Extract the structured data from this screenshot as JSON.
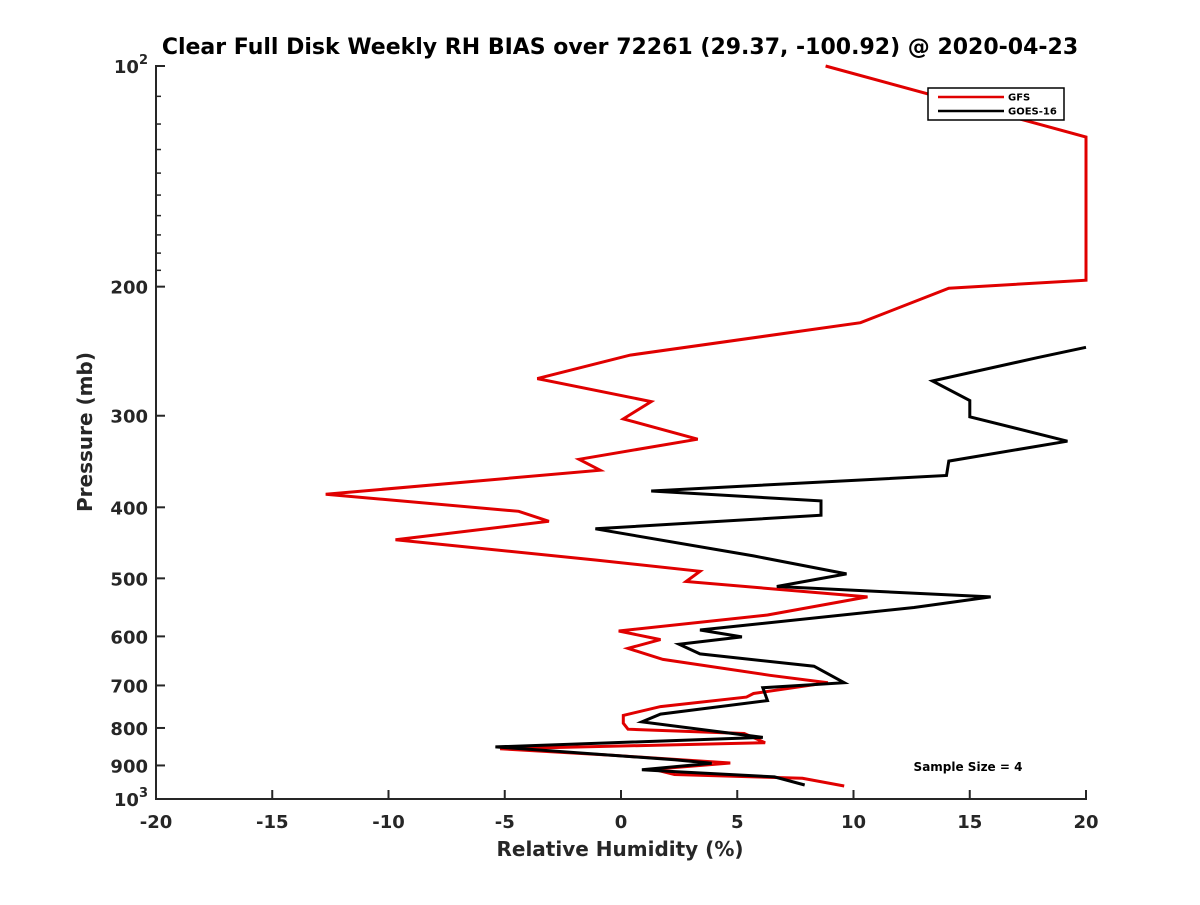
{
  "chart_data": {
    "type": "line",
    "title": "Clear Full Disk Weekly RH BIAS over 72261 (29.37, -100.92) @ 2020-04-23",
    "xlabel": "Relative Humidity (%)",
    "ylabel": "Pressure (mb)",
    "xlim": [
      -20,
      20
    ],
    "ylim": [
      100,
      1000
    ],
    "yscale": "log",
    "y_reversed": true,
    "grid": false,
    "legend_position": "top-right",
    "x_ticks": [
      "-20",
      "-15",
      "-10",
      "-5",
      "0",
      "5",
      "10",
      "15",
      "20"
    ],
    "y_ticks": [
      {
        "base": "10",
        "exp": "2",
        "value": 100
      },
      {
        "label": "200",
        "value": 200
      },
      {
        "label": "300",
        "value": 300
      },
      {
        "label": "400",
        "value": 400
      },
      {
        "label": "500",
        "value": 500
      },
      {
        "label": "600",
        "value": 600
      },
      {
        "label": "700",
        "value": 700
      },
      {
        "label": "800",
        "value": 800
      },
      {
        "label": "900",
        "value": 900
      },
      {
        "base": "10",
        "exp": "3",
        "value": 1000
      }
    ],
    "annotation": "Sample Size = 4",
    "series": [
      {
        "name": "GFS",
        "color": "#e00000",
        "points": [
          [
            8.8,
            100
          ],
          [
            20,
            125
          ],
          [
            20,
            196
          ],
          [
            14.1,
            201
          ],
          [
            10.3,
            224
          ],
          [
            0.4,
            248
          ],
          [
            -3.6,
            267
          ],
          [
            1.3,
            287
          ],
          [
            0.1,
            303
          ],
          [
            3.3,
            323
          ],
          [
            -1.8,
            344
          ],
          [
            -0.9,
            356
          ],
          [
            -12.7,
            384
          ],
          [
            -4.4,
            405
          ],
          [
            -3.1,
            418
          ],
          [
            -9.7,
            443
          ],
          [
            -1.1,
            472
          ],
          [
            3.4,
            489
          ],
          [
            2.8,
            505
          ],
          [
            10.6,
            530
          ],
          [
            6.3,
            561
          ],
          [
            -0.1,
            590
          ],
          [
            1.7,
            606
          ],
          [
            0.3,
            623
          ],
          [
            1.8,
            645
          ],
          [
            6.4,
            678
          ],
          [
            8.9,
            694
          ],
          [
            5.7,
            718
          ],
          [
            5.4,
            726
          ],
          [
            1.7,
            748
          ],
          [
            0.1,
            769
          ],
          [
            0.1,
            788
          ],
          [
            0.3,
            803
          ],
          [
            5.3,
            814
          ],
          [
            6.2,
            838
          ],
          [
            -5.2,
            854
          ],
          [
            -0.3,
            872
          ],
          [
            4.7,
            893
          ],
          [
            1.4,
            911
          ],
          [
            2.3,
            926
          ],
          [
            7.8,
            937
          ],
          [
            9.6,
            960
          ]
        ]
      },
      {
        "name": "GOES-16",
        "color": "#000000",
        "points": [
          [
            20,
            242
          ],
          [
            17.9,
            250
          ],
          [
            13.4,
            269
          ],
          [
            15,
            286
          ],
          [
            15,
            301
          ],
          [
            19.2,
            325
          ],
          [
            14.1,
            346
          ],
          [
            14,
            362
          ],
          [
            1.3,
            380
          ],
          [
            8.6,
            392
          ],
          [
            8.6,
            410
          ],
          [
            -1.1,
            428
          ],
          [
            5.7,
            466
          ],
          [
            9.7,
            493
          ],
          [
            6.7,
            513
          ],
          [
            15.9,
            530
          ],
          [
            12.6,
            548
          ],
          [
            3.4,
            588
          ],
          [
            5.2,
            601
          ],
          [
            2.5,
            615
          ],
          [
            3.4,
            634
          ],
          [
            8.3,
            659
          ],
          [
            9.6,
            694
          ],
          [
            6.1,
            705
          ],
          [
            6.3,
            734
          ],
          [
            1.7,
            766
          ],
          [
            0.9,
            785
          ],
          [
            6.1,
            824
          ],
          [
            -5.4,
            849
          ],
          [
            2.3,
            884
          ],
          [
            3.9,
            894
          ],
          [
            0.9,
            912
          ],
          [
            2.4,
            918
          ],
          [
            6.6,
            933
          ],
          [
            7.9,
            957
          ]
        ]
      }
    ]
  }
}
